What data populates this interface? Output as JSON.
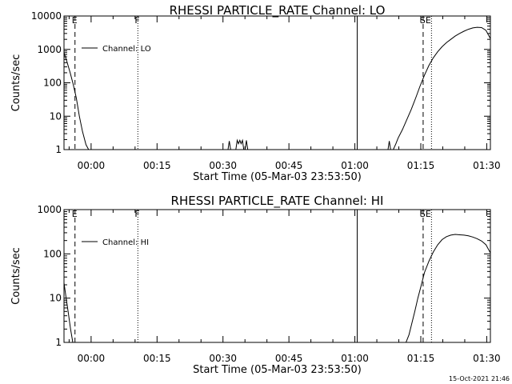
{
  "chart_data": [
    {
      "type": "line",
      "title": "RHESSI PARTICLE_RATE Channel: LO",
      "xlabel": "Start Time (05-Mar-03 23:53:50)",
      "ylabel": "Counts/sec",
      "yscale": "log",
      "ylim": [
        1,
        10000
      ],
      "xlim_minutes_from_start": [
        0,
        97
      ],
      "x_tick_labels": [
        "00:00",
        "00:15",
        "00:30",
        "00:45",
        "01:00",
        "01:15",
        "01:30"
      ],
      "y_tick_labels": [
        "1",
        "10",
        "100",
        "1000",
        "10000"
      ],
      "y_ticks": [
        1,
        10,
        100,
        1000,
        10000
      ],
      "legend": {
        "label": "Channel: LO",
        "position": "top-left"
      },
      "markers": [
        {
          "label": "E",
          "style": "dashed",
          "t": 2.5
        },
        {
          "label": "F",
          "style": "dotted",
          "t": 16.8
        },
        {
          "label": "",
          "style": "solid",
          "t": 66.7
        },
        {
          "label": "SE",
          "style": "dashed",
          "t": 81.7
        },
        {
          "label": "",
          "style": "dotted",
          "t": 83.6
        },
        {
          "label": "",
          "style": "dashdot",
          "t": 97
        }
      ],
      "series": [
        {
          "name": "Channel: LO",
          "points": [
            [
              0.0,
              800
            ],
            [
              0.7,
              420
            ],
            [
              1.4,
              200
            ],
            [
              2.1,
              90
            ],
            [
              2.8,
              35
            ],
            [
              3.5,
              10
            ],
            [
              4.2,
              3.5
            ],
            [
              5.0,
              1.4
            ],
            [
              5.6,
              1
            ],
            [
              37.3,
              1
            ],
            [
              37.6,
              1.8
            ],
            [
              37.9,
              1
            ],
            [
              39.1,
              1
            ],
            [
              39.4,
              1.9
            ],
            [
              39.7,
              1.5
            ],
            [
              40.0,
              1.9
            ],
            [
              40.3,
              1.5
            ],
            [
              40.6,
              1.9
            ],
            [
              40.9,
              1
            ],
            [
              41.2,
              1
            ],
            [
              41.5,
              1.9
            ],
            [
              41.8,
              1
            ],
            [
              73.7,
              1
            ],
            [
              74.0,
              1.8
            ],
            [
              74.3,
              1
            ],
            [
              74.9,
              1
            ],
            [
              75.5,
              1.5
            ],
            [
              76.0,
              2.2
            ],
            [
              77.0,
              4
            ],
            [
              78.0,
              8
            ],
            [
              79.0,
              16
            ],
            [
              80.0,
              35
            ],
            [
              81.0,
              80
            ],
            [
              82.0,
              170
            ],
            [
              83.0,
              330
            ],
            [
              84.0,
              560
            ],
            [
              85.0,
              850
            ],
            [
              86.0,
              1200
            ],
            [
              87.0,
              1600
            ],
            [
              88.0,
              2000
            ],
            [
              89.0,
              2500
            ],
            [
              90.0,
              3000
            ],
            [
              91.0,
              3500
            ],
            [
              92.0,
              4000
            ],
            [
              93.0,
              4400
            ],
            [
              94.0,
              4600
            ],
            [
              95.0,
              4500
            ],
            [
              96.0,
              3700
            ],
            [
              97.0,
              2100
            ]
          ]
        }
      ]
    },
    {
      "type": "line",
      "title": "RHESSI PARTICLE_RATE Channel: HI",
      "xlabel": "Start Time (05-Mar-03 23:53:50)",
      "ylabel": "Counts/sec",
      "yscale": "log",
      "ylim": [
        1,
        1000
      ],
      "xlim_minutes_from_start": [
        0,
        97
      ],
      "x_tick_labels": [
        "00:00",
        "00:15",
        "00:30",
        "00:45",
        "01:00",
        "01:15",
        "01:30"
      ],
      "y_tick_labels": [
        "1",
        "10",
        "100",
        "1000"
      ],
      "y_ticks": [
        1,
        10,
        100,
        1000
      ],
      "legend": {
        "label": "Channel: HI",
        "position": "top-left"
      },
      "markers": [
        {
          "label": "E",
          "style": "dashed",
          "t": 2.5
        },
        {
          "label": "F",
          "style": "dotted",
          "t": 16.8
        },
        {
          "label": "",
          "style": "solid",
          "t": 66.7
        },
        {
          "label": "SE",
          "style": "dashed",
          "t": 81.7
        },
        {
          "label": "",
          "style": "dotted",
          "t": 83.6
        },
        {
          "label": "",
          "style": "dashdot",
          "t": 97
        }
      ],
      "series": [
        {
          "name": "Channel: HI",
          "points": [
            [
              0.0,
              22
            ],
            [
              0.5,
              10
            ],
            [
              1.0,
              4.5
            ],
            [
              1.5,
              2
            ],
            [
              2.0,
              1
            ],
            [
              77.8,
              1
            ],
            [
              78.5,
              1.5
            ],
            [
              79.0,
              2.4
            ],
            [
              79.8,
              5
            ],
            [
              80.5,
              10
            ],
            [
              81.3,
              20
            ],
            [
              82.0,
              38
            ],
            [
              83.0,
              68
            ],
            [
              84.0,
              110
            ],
            [
              85.0,
              160
            ],
            [
              86.0,
              210
            ],
            [
              87.0,
              245
            ],
            [
              88.0,
              265
            ],
            [
              89.0,
              275
            ],
            [
              90.0,
              270
            ],
            [
              91.0,
              265
            ],
            [
              92.0,
              255
            ],
            [
              93.0,
              240
            ],
            [
              94.0,
              220
            ],
            [
              95.0,
              195
            ],
            [
              96.0,
              160
            ],
            [
              97.0,
              105
            ]
          ]
        }
      ]
    }
  ],
  "footer": {
    "timestamp": "15-Oct-2021 21:46"
  }
}
